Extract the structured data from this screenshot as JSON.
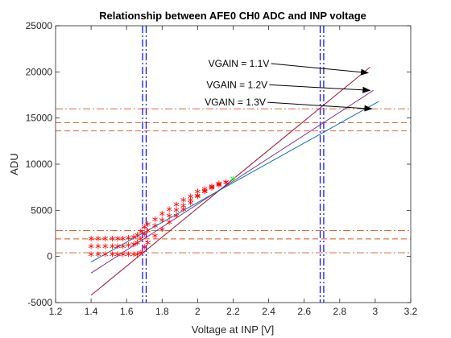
{
  "chart_data": {
    "type": "line",
    "title": "Relationship between AFE0 CH0 ADC and INP voltage",
    "xlabel": "Voltage at INP [V]",
    "ylabel": "ADU",
    "xlim": [
      1.2,
      3.2
    ],
    "ylim": [
      -5000,
      25000
    ],
    "x_ticks": [
      "1.2",
      "1.4",
      "1.6",
      "1.8",
      "2",
      "2.2",
      "2.4",
      "2.6",
      "2.8",
      "3",
      "3.2"
    ],
    "y_ticks": [
      "-5000",
      "0",
      "5000",
      "10000",
      "15000",
      "20000",
      "25000"
    ],
    "grid": false,
    "colors": {
      "blue_line": "#0072bd",
      "purple_line": "#7e2f8e",
      "dark_red_line": "#a2142f",
      "markers": "#ff0000",
      "intersection": "#00ff00",
      "vertical_lines": "#0000ff",
      "horizontal_lines": "#d95319"
    },
    "series": [
      {
        "name": "VGAIN = 1.1V",
        "line_x": [
          1.4,
          2.97
        ],
        "line_y": [
          -4200,
          20500
        ],
        "marker_x": [
          1.4,
          1.44,
          1.48,
          1.52,
          1.55,
          1.58,
          1.61,
          1.64,
          1.66,
          1.68,
          1.7,
          1.72,
          1.76,
          1.8,
          1.84,
          1.88,
          1.92,
          1.96,
          2.0,
          2.04,
          2.08,
          2.12,
          2.16
        ],
        "marker_y": [
          1700,
          1700,
          1700,
          1700,
          1700,
          1700,
          1800,
          1900,
          2100,
          2500,
          3000,
          3300,
          3800,
          4400,
          4900,
          5400,
          5900,
          6300,
          6800,
          7100,
          7400,
          7700,
          7800
        ]
      },
      {
        "name": "VGAIN = 1.2V",
        "line_x": [
          1.4,
          2.99
        ],
        "line_y": [
          -1800,
          18000
        ],
        "marker_x": [
          1.4,
          1.44,
          1.48,
          1.52,
          1.55,
          1.58,
          1.61,
          1.64,
          1.66,
          1.68,
          1.7,
          1.72,
          1.76,
          1.8,
          1.84,
          1.88,
          1.92,
          1.96,
          2.0,
          2.04,
          2.08,
          2.12,
          2.16
        ],
        "marker_y": [
          900,
          900,
          900,
          900,
          900,
          900,
          1000,
          1100,
          1300,
          1700,
          2200,
          2600,
          3100,
          3700,
          4200,
          4800,
          5300,
          5900,
          6400,
          6800,
          7200,
          7500,
          7800
        ]
      },
      {
        "name": "VGAIN = 1.3V",
        "line_x": [
          1.4,
          3.02
        ],
        "line_y": [
          -600,
          16800
        ],
        "marker_x": [
          1.4,
          1.44,
          1.48,
          1.52,
          1.55,
          1.58,
          1.61,
          1.64,
          1.66,
          1.68,
          1.7,
          1.72,
          1.76,
          1.8,
          1.84,
          1.88,
          1.92,
          1.96,
          2.0,
          2.04,
          2.08,
          2.12,
          2.16
        ],
        "marker_y": [
          0,
          0,
          0,
          0,
          0,
          0,
          0,
          0,
          0,
          200,
          800,
          1300,
          2000,
          2700,
          3500,
          4200,
          4900,
          5600,
          6300,
          6900,
          7300,
          7600,
          7800
        ]
      }
    ],
    "intersection": {
      "x": 2.2,
      "y": 8200
    },
    "vertical_lines": [
      {
        "x": 1.69,
        "style": "dash-dot"
      },
      {
        "x": 1.71,
        "style": "dash-dot"
      },
      {
        "x": 2.69,
        "style": "dash-dot"
      },
      {
        "x": 2.71,
        "style": "dash-dot"
      }
    ],
    "horizontal_lines": [
      {
        "y": 16000,
        "style": "dash-dot"
      },
      {
        "y": 14500,
        "style": "dash"
      },
      {
        "y": 13600,
        "style": "dash"
      },
      {
        "y": 2800,
        "style": "dash-dot"
      },
      {
        "y": 1900,
        "style": "dash"
      },
      {
        "y": 400,
        "style": "dash-dot"
      }
    ],
    "annotations": [
      {
        "text": "VGAIN = 1.1V",
        "text_x": 2.06,
        "text_y": 20900,
        "arrow_to_x": 2.96,
        "arrow_to_y": 19900
      },
      {
        "text": "VGAIN = 1.2V",
        "text_x": 2.05,
        "text_y": 18600,
        "arrow_to_x": 2.97,
        "arrow_to_y": 18000
      },
      {
        "text": "VGAIN = 1.3V",
        "text_x": 2.04,
        "text_y": 16700,
        "arrow_to_x": 2.98,
        "arrow_to_y": 16000
      }
    ]
  }
}
